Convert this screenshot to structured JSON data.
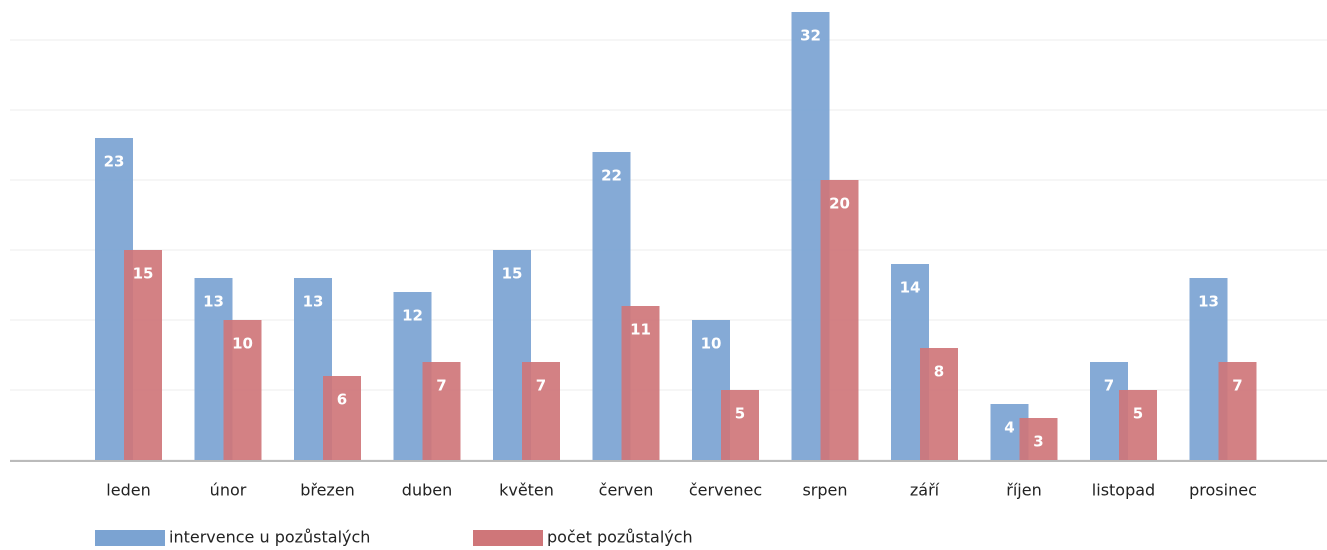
{
  "chart_data": {
    "type": "bar",
    "categories": [
      "leden",
      "únor",
      "březen",
      "duben",
      "květen",
      "červen",
      "červenec",
      "srpen",
      "září",
      "říjen",
      "listopad",
      "prosinec"
    ],
    "series": [
      {
        "name": "intervence u pozůstalých",
        "color": "#7ba3d2",
        "values": [
          23,
          13,
          13,
          12,
          15,
          22,
          10,
          32,
          14,
          4,
          7,
          13
        ]
      },
      {
        "name": "počet pozůstalých",
        "color": "#cf7679",
        "values": [
          15,
          10,
          6,
          7,
          7,
          11,
          5,
          20,
          8,
          3,
          5,
          7
        ]
      }
    ],
    "ylim": [
      0,
      32
    ],
    "yticks": [
      0,
      5,
      10,
      15,
      20,
      25,
      30
    ],
    "grid": true,
    "legend": "bottom"
  }
}
